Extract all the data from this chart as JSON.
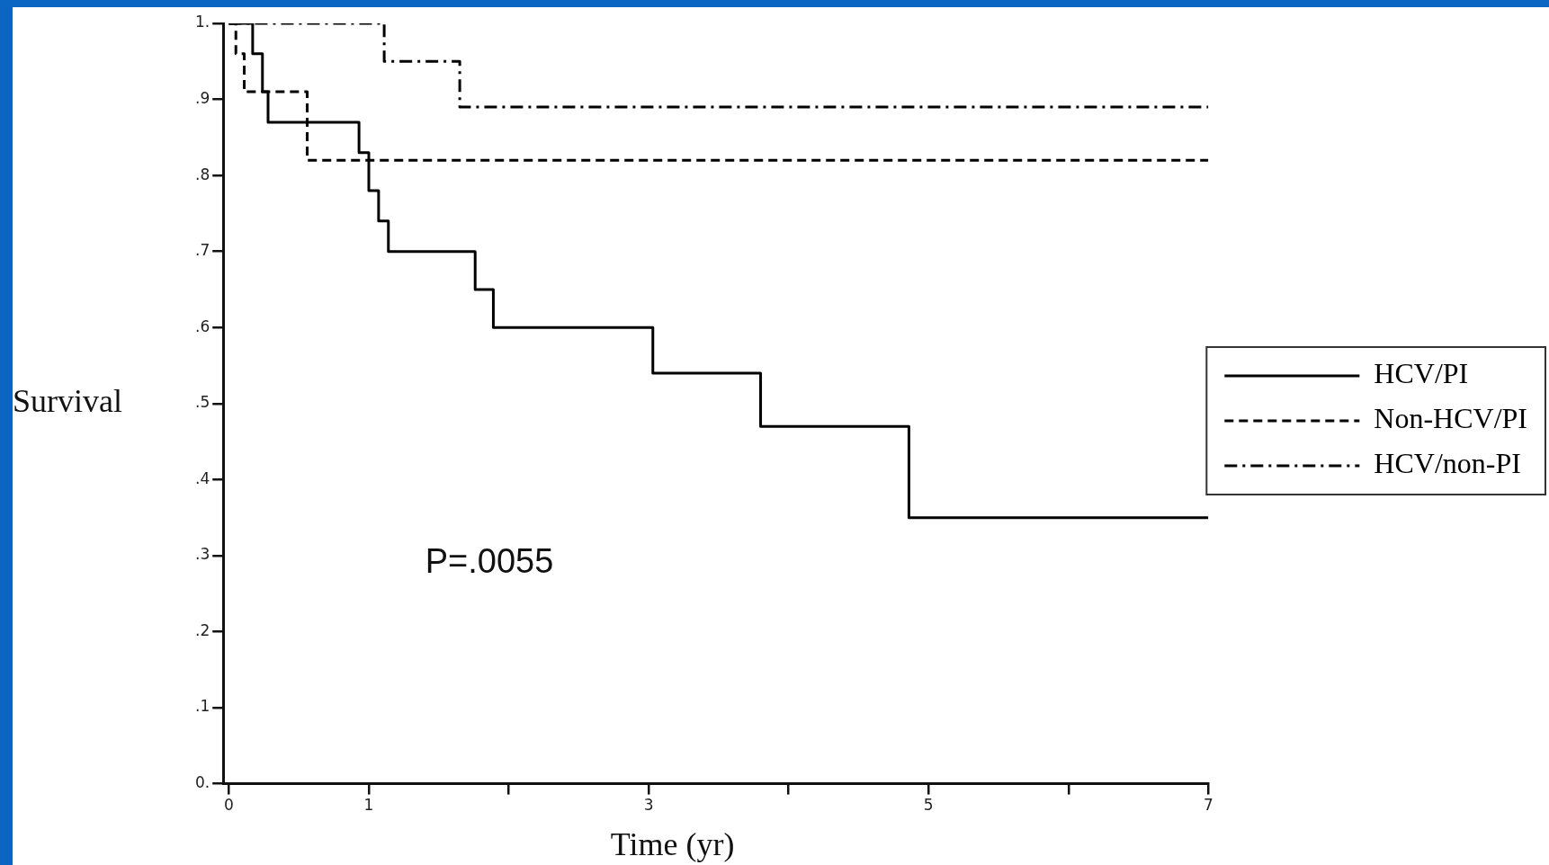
{
  "chart_data": {
    "type": "step",
    "xlabel": "Time (yr)",
    "ylabel": "Survival",
    "xlim": [
      -0.04,
      7
    ],
    "ylim": [
      0,
      1
    ],
    "xticks": [
      0,
      1,
      {
        "value": 2,
        "label": null
      },
      3,
      {
        "value": 4,
        "label": null
      },
      5,
      {
        "value": 6,
        "label": null
      },
      7
    ],
    "yticks": [
      {
        "value": 0,
        "label": "0."
      },
      {
        "value": 0.1,
        "label": ".1"
      },
      {
        "value": 0.2,
        "label": ".2"
      },
      {
        "value": 0.3,
        "label": ".3"
      },
      {
        "value": 0.4,
        "label": ".4"
      },
      {
        "value": 0.5,
        "label": ".5"
      },
      {
        "value": 0.6,
        "label": ".6"
      },
      {
        "value": 0.7,
        "label": ".7"
      },
      {
        "value": 0.8,
        "label": ".8"
      },
      {
        "value": 0.9,
        "label": ".9"
      },
      {
        "value": 1,
        "label": "1."
      }
    ],
    "grid": false,
    "legend": "right",
    "marker": "none",
    "annotations": [
      "P=.0055"
    ],
    "series": [
      {
        "name": "HCV/PI",
        "color": "#000000",
        "line_style": "solid",
        "x": [
          0,
          0.17,
          0.24,
          0.28,
          0.93,
          1.0,
          1.07,
          1.14,
          1.76,
          1.89,
          3.03,
          3.8,
          4.86,
          7
        ],
        "values": [
          1,
          0.96,
          0.91,
          0.87,
          0.83,
          0.78,
          0.74,
          0.7,
          0.65,
          0.6,
          0.54,
          0.47,
          0.35,
          0.35
        ]
      },
      {
        "name": "Non-HCV/PI",
        "color": "#000000",
        "line_style": "dashed",
        "x": [
          0,
          0.05,
          0.11,
          0.56,
          7
        ],
        "values": [
          1,
          0.96,
          0.91,
          0.82,
          0.82
        ]
      },
      {
        "name": "HCV/non-PI",
        "color": "#000000",
        "line_style": "dashdot",
        "x": [
          0,
          1.11,
          1.65,
          7
        ],
        "values": [
          1,
          0.95,
          0.89,
          0.89
        ]
      }
    ]
  }
}
